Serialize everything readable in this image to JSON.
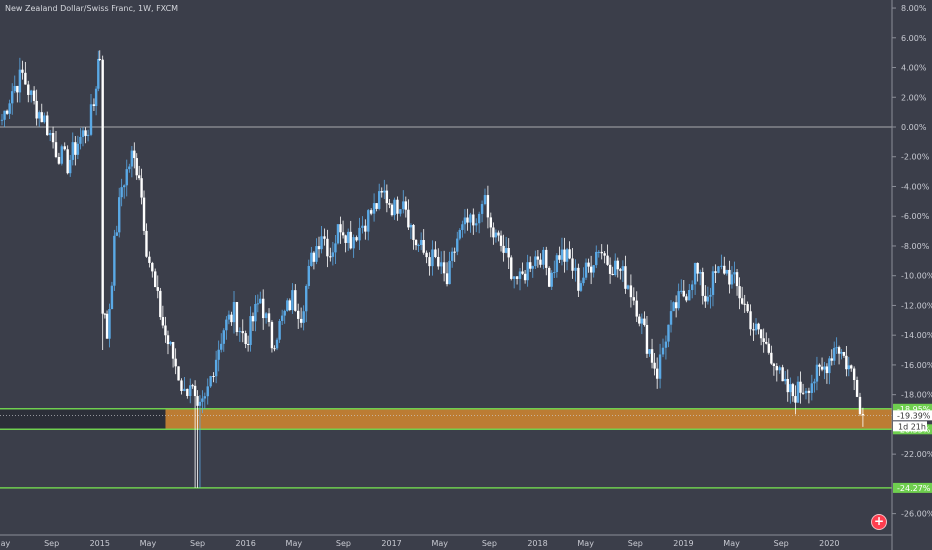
{
  "title": "New Zealand Dollar/Swiss Franc, 1W, FXCM",
  "colors": {
    "background": "#3b3e4a",
    "up_candle": "#5aa9e6",
    "down_candle": "#ffffff",
    "zone_fill": "#d3872f",
    "support_line": "#6fcf4f",
    "zero_line": "#d0d0d0"
  },
  "countdown": "1d 21h",
  "chart_data": {
    "type": "candlestick",
    "y_unit": "%",
    "ylim": [
      -27,
      8.5
    ],
    "x_range": [
      "2014-05",
      "2020-05"
    ],
    "y_ticks": [
      "8.00%",
      "6.00%",
      "4.00%",
      "2.00%",
      "0.00%",
      "-2.00%",
      "-4.00%",
      "-6.00%",
      "-8.00%",
      "-10.00%",
      "-12.00%",
      "-14.00%",
      "-16.00%",
      "-18.00%",
      "-22.00%",
      "-26.00%"
    ],
    "y_tick_values": [
      8,
      6,
      4,
      2,
      0,
      -2,
      -4,
      -6,
      -8,
      -10,
      -12,
      -14,
      -16,
      -18,
      -22,
      -26
    ],
    "x_ticks": [
      {
        "label": "May",
        "date": 2014.33
      },
      {
        "label": "Sep",
        "date": 2014.67
      },
      {
        "label": "2015",
        "date": 2015.0
      },
      {
        "label": "May",
        "date": 2015.33
      },
      {
        "label": "Sep",
        "date": 2015.67
      },
      {
        "label": "2016",
        "date": 2016.0
      },
      {
        "label": "May",
        "date": 2016.33
      },
      {
        "label": "Sep",
        "date": 2016.67
      },
      {
        "label": "2017",
        "date": 2017.0
      },
      {
        "label": "May",
        "date": 2017.33
      },
      {
        "label": "Sep",
        "date": 2017.67
      },
      {
        "label": "2018",
        "date": 2018.0
      },
      {
        "label": "May",
        "date": 2018.33
      },
      {
        "label": "Sep",
        "date": 2018.67
      },
      {
        "label": "2019",
        "date": 2019.0
      },
      {
        "label": "May",
        "date": 2019.33
      },
      {
        "label": "Sep",
        "date": 2019.67
      },
      {
        "label": "2020",
        "date": 2020.0
      }
    ],
    "zero_line": 0,
    "support_zone": {
      "from": -18.95,
      "to": -20.33,
      "start": 2015.45
    },
    "horizontal_lines": [
      {
        "value": -18.95,
        "label": "-18.95%"
      },
      {
        "value": -20.33,
        "label": "-20.33%"
      },
      {
        "value": -24.27,
        "label": "-24.27%"
      }
    ],
    "current_value": {
      "value": -19.39,
      "label": "-19.39%"
    },
    "path": [
      [
        2014.33,
        0.5
      ],
      [
        2014.4,
        2.5
      ],
      [
        2014.47,
        3.5
      ],
      [
        2014.55,
        1.5
      ],
      [
        2014.62,
        0.5
      ],
      [
        2014.7,
        -1.5
      ],
      [
        2014.78,
        -2.5
      ],
      [
        2014.85,
        -1.0
      ],
      [
        2014.92,
        0.0
      ],
      [
        2014.96,
        1.5
      ],
      [
        2014.99,
        4.5
      ],
      [
        2015.0,
        4.8
      ],
      [
        2015.02,
        -12.0
      ],
      [
        2015.05,
        -14.0
      ],
      [
        2015.1,
        -8.0
      ],
      [
        2015.15,
        -4.0
      ],
      [
        2015.22,
        -2.0
      ],
      [
        2015.27,
        -3.0
      ],
      [
        2015.32,
        -8.0
      ],
      [
        2015.38,
        -11.0
      ],
      [
        2015.45,
        -14.0
      ],
      [
        2015.52,
        -16.0
      ],
      [
        2015.58,
        -18.0
      ],
      [
        2015.62,
        -17.0
      ],
      [
        2015.67,
        -19.5
      ],
      [
        2015.72,
        -18.5
      ],
      [
        2015.78,
        -16.0
      ],
      [
        2015.85,
        -13.5
      ],
      [
        2015.92,
        -12.5
      ],
      [
        2016.0,
        -14.5
      ],
      [
        2016.05,
        -13.0
      ],
      [
        2016.1,
        -11.5
      ],
      [
        2016.18,
        -14.5
      ],
      [
        2016.25,
        -13.0
      ],
      [
        2016.32,
        -11.5
      ],
      [
        2016.38,
        -12.5
      ],
      [
        2016.45,
        -9.0
      ],
      [
        2016.52,
        -7.0
      ],
      [
        2016.58,
        -8.5
      ],
      [
        2016.65,
        -6.5
      ],
      [
        2016.72,
        -7.5
      ],
      [
        2016.8,
        -6.5
      ],
      [
        2016.88,
        -5.5
      ],
      [
        2016.95,
        -4.5
      ],
      [
        2017.02,
        -5.5
      ],
      [
        2017.08,
        -4.5
      ],
      [
        2017.15,
        -7.5
      ],
      [
        2017.22,
        -8.5
      ],
      [
        2017.3,
        -9.0
      ],
      [
        2017.38,
        -10.5
      ],
      [
        2017.45,
        -7.5
      ],
      [
        2017.52,
        -6.5
      ],
      [
        2017.58,
        -7.0
      ],
      [
        2017.62,
        -4.5
      ],
      [
        2017.68,
        -7.0
      ],
      [
        2017.75,
        -8.0
      ],
      [
        2017.82,
        -9.5
      ],
      [
        2017.88,
        -10.5
      ],
      [
        2017.95,
        -9.0
      ],
      [
        2018.02,
        -8.5
      ],
      [
        2018.08,
        -10.0
      ],
      [
        2018.15,
        -8.5
      ],
      [
        2018.22,
        -9.0
      ],
      [
        2018.28,
        -10.5
      ],
      [
        2018.35,
        -9.5
      ],
      [
        2018.42,
        -8.0
      ],
      [
        2018.48,
        -9.0
      ],
      [
        2018.55,
        -9.5
      ],
      [
        2018.62,
        -10.5
      ],
      [
        2018.68,
        -12.0
      ],
      [
        2018.75,
        -14.5
      ],
      [
        2018.82,
        -16.5
      ],
      [
        2018.88,
        -14.0
      ],
      [
        2018.95,
        -12.0
      ],
      [
        2019.02,
        -11.0
      ],
      [
        2019.08,
        -9.5
      ],
      [
        2019.15,
        -11.5
      ],
      [
        2019.22,
        -10.0
      ],
      [
        2019.28,
        -9.5
      ],
      [
        2019.35,
        -10.5
      ],
      [
        2019.42,
        -12.0
      ],
      [
        2019.48,
        -13.5
      ],
      [
        2019.55,
        -14.5
      ],
      [
        2019.62,
        -15.5
      ],
      [
        2019.68,
        -17.5
      ],
      [
        2019.75,
        -18.0
      ],
      [
        2019.82,
        -17.5
      ],
      [
        2019.88,
        -17.0
      ],
      [
        2019.95,
        -16.5
      ],
      [
        2020.0,
        -15.5
      ],
      [
        2020.05,
        -14.5
      ],
      [
        2020.1,
        -15.5
      ],
      [
        2020.15,
        -16.5
      ],
      [
        2020.19,
        -17.5
      ],
      [
        2020.21,
        -18.5
      ],
      [
        2020.23,
        -19.39
      ]
    ]
  }
}
